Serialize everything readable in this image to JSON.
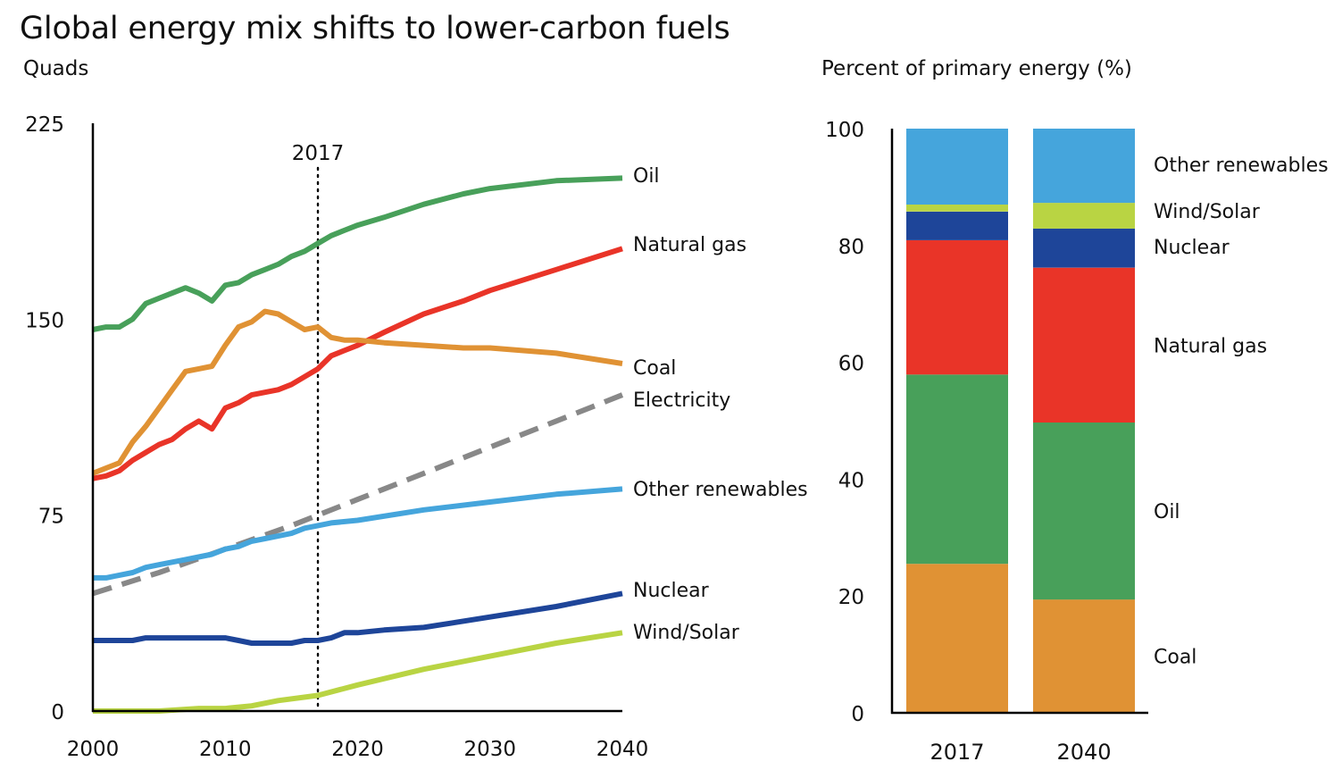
{
  "title": "Global energy mix shifts to lower-carbon fuels",
  "colors": {
    "oil": "#48a05a",
    "natural_gas": "#e93428",
    "coal": "#e09234",
    "electricity": "#888888",
    "other_renewables": "#45a5dc",
    "nuclear": "#1e4599",
    "wind_solar": "#b9d443",
    "axis": "#000000"
  },
  "chart_data": [
    {
      "type": "line",
      "ylabel": "Quads",
      "xlabel": "",
      "xlim": [
        2000,
        2040
      ],
      "ylim": [
        0,
        225
      ],
      "x_ticks": [
        "2000",
        "2010",
        "2020",
        "2030",
        "2040"
      ],
      "y_ticks": [
        "0",
        "75",
        "150",
        "225"
      ],
      "reference_line": {
        "x": 2017,
        "label": "2017",
        "style": "dotted"
      },
      "series": [
        {
          "name": "Oil",
          "color_key": "oil",
          "style": "solid",
          "points": [
            [
              2000,
              146
            ],
            [
              2001,
              147
            ],
            [
              2002,
              147
            ],
            [
              2003,
              150
            ],
            [
              2004,
              156
            ],
            [
              2005,
              158
            ],
            [
              2006,
              160
            ],
            [
              2007,
              162
            ],
            [
              2008,
              160
            ],
            [
              2009,
              157
            ],
            [
              2010,
              163
            ],
            [
              2011,
              164
            ],
            [
              2012,
              167
            ],
            [
              2013,
              169
            ],
            [
              2014,
              171
            ],
            [
              2015,
              174
            ],
            [
              2016,
              176
            ],
            [
              2017,
              179
            ],
            [
              2018,
              182
            ],
            [
              2019,
              184
            ],
            [
              2020,
              186
            ],
            [
              2022,
              189
            ],
            [
              2025,
              194
            ],
            [
              2028,
              198
            ],
            [
              2030,
              200
            ],
            [
              2035,
              203
            ],
            [
              2040,
              204
            ]
          ]
        },
        {
          "name": "Natural gas",
          "color_key": "natural_gas",
          "style": "solid",
          "points": [
            [
              2000,
              89
            ],
            [
              2001,
              90
            ],
            [
              2002,
              92
            ],
            [
              2003,
              96
            ],
            [
              2004,
              99
            ],
            [
              2005,
              102
            ],
            [
              2006,
              104
            ],
            [
              2007,
              108
            ],
            [
              2008,
              111
            ],
            [
              2009,
              108
            ],
            [
              2010,
              116
            ],
            [
              2011,
              118
            ],
            [
              2012,
              121
            ],
            [
              2013,
              122
            ],
            [
              2014,
              123
            ],
            [
              2015,
              125
            ],
            [
              2016,
              128
            ],
            [
              2017,
              131
            ],
            [
              2018,
              136
            ],
            [
              2019,
              138
            ],
            [
              2020,
              140
            ],
            [
              2022,
              145
            ],
            [
              2025,
              152
            ],
            [
              2028,
              157
            ],
            [
              2030,
              161
            ],
            [
              2035,
              169
            ],
            [
              2040,
              177
            ]
          ]
        },
        {
          "name": "Coal",
          "color_key": "coal",
          "style": "solid",
          "points": [
            [
              2000,
              91
            ],
            [
              2001,
              93
            ],
            [
              2002,
              95
            ],
            [
              2003,
              103
            ],
            [
              2004,
              109
            ],
            [
              2005,
              116
            ],
            [
              2006,
              123
            ],
            [
              2007,
              130
            ],
            [
              2008,
              131
            ],
            [
              2009,
              132
            ],
            [
              2010,
              140
            ],
            [
              2011,
              147
            ],
            [
              2012,
              149
            ],
            [
              2013,
              153
            ],
            [
              2014,
              152
            ],
            [
              2015,
              149
            ],
            [
              2016,
              146
            ],
            [
              2017,
              147
            ],
            [
              2018,
              143
            ],
            [
              2019,
              142
            ],
            [
              2020,
              142
            ],
            [
              2022,
              141
            ],
            [
              2025,
              140
            ],
            [
              2028,
              139
            ],
            [
              2030,
              139
            ],
            [
              2035,
              137
            ],
            [
              2040,
              133
            ]
          ]
        },
        {
          "name": "Electricity",
          "color_key": "electricity",
          "style": "dashed",
          "points": [
            [
              2000,
              45
            ],
            [
              2005,
              53
            ],
            [
              2010,
              62
            ],
            [
              2015,
              71
            ],
            [
              2017,
              75
            ],
            [
              2020,
              81
            ],
            [
              2025,
              91
            ],
            [
              2030,
              101
            ],
            [
              2035,
              111
            ],
            [
              2040,
              121
            ]
          ]
        },
        {
          "name": "Other renewables",
          "color_key": "other_renewables",
          "style": "solid",
          "points": [
            [
              2000,
              51
            ],
            [
              2001,
              51
            ],
            [
              2002,
              52
            ],
            [
              2003,
              53
            ],
            [
              2004,
              55
            ],
            [
              2005,
              56
            ],
            [
              2006,
              57
            ],
            [
              2007,
              58
            ],
            [
              2008,
              59
            ],
            [
              2009,
              60
            ],
            [
              2010,
              62
            ],
            [
              2011,
              63
            ],
            [
              2012,
              65
            ],
            [
              2013,
              66
            ],
            [
              2014,
              67
            ],
            [
              2015,
              68
            ],
            [
              2016,
              70
            ],
            [
              2017,
              71
            ],
            [
              2018,
              72
            ],
            [
              2020,
              73
            ],
            [
              2025,
              77
            ],
            [
              2030,
              80
            ],
            [
              2035,
              83
            ],
            [
              2040,
              85
            ]
          ]
        },
        {
          "name": "Nuclear",
          "color_key": "nuclear",
          "style": "solid",
          "points": [
            [
              2000,
              27
            ],
            [
              2001,
              27
            ],
            [
              2002,
              27
            ],
            [
              2003,
              27
            ],
            [
              2004,
              28
            ],
            [
              2005,
              28
            ],
            [
              2006,
              28
            ],
            [
              2007,
              28
            ],
            [
              2008,
              28
            ],
            [
              2009,
              28
            ],
            [
              2010,
              28
            ],
            [
              2011,
              27
            ],
            [
              2012,
              26
            ],
            [
              2013,
              26
            ],
            [
              2014,
              26
            ],
            [
              2015,
              26
            ],
            [
              2016,
              27
            ],
            [
              2017,
              27
            ],
            [
              2018,
              28
            ],
            [
              2019,
              30
            ],
            [
              2020,
              30
            ],
            [
              2022,
              31
            ],
            [
              2025,
              32
            ],
            [
              2030,
              36
            ],
            [
              2035,
              40
            ],
            [
              2040,
              45
            ]
          ]
        },
        {
          "name": "Wind/Solar",
          "color_key": "wind_solar",
          "style": "solid",
          "points": [
            [
              2000,
              0
            ],
            [
              2005,
              0
            ],
            [
              2008,
              1
            ],
            [
              2010,
              1
            ],
            [
              2012,
              2
            ],
            [
              2014,
              4
            ],
            [
              2017,
              6
            ],
            [
              2020,
              10
            ],
            [
              2025,
              16
            ],
            [
              2030,
              21
            ],
            [
              2035,
              26
            ],
            [
              2040,
              30
            ]
          ]
        }
      ]
    },
    {
      "type": "bar",
      "stacked": true,
      "title": "Percent of primary energy (%)",
      "categories": [
        "2017",
        "2040"
      ],
      "ylim": [
        0,
        100
      ],
      "y_ticks": [
        "0",
        "20",
        "40",
        "60",
        "80",
        "100"
      ],
      "series": [
        {
          "name": "Coal",
          "color_key": "coal",
          "values": [
            25.5,
            19.4
          ]
        },
        {
          "name": "Oil",
          "color_key": "oil",
          "values": [
            32.4,
            30.3
          ]
        },
        {
          "name": "Natural gas",
          "color_key": "natural_gas",
          "values": [
            23.0,
            26.5
          ]
        },
        {
          "name": "Nuclear",
          "color_key": "nuclear",
          "values": [
            4.9,
            6.7
          ]
        },
        {
          "name": "Wind/Solar",
          "color_key": "wind_solar",
          "values": [
            1.2,
            4.4
          ]
        },
        {
          "name": "Other renewables",
          "color_key": "other_renewables",
          "values": [
            13.0,
            12.7
          ]
        }
      ]
    }
  ]
}
